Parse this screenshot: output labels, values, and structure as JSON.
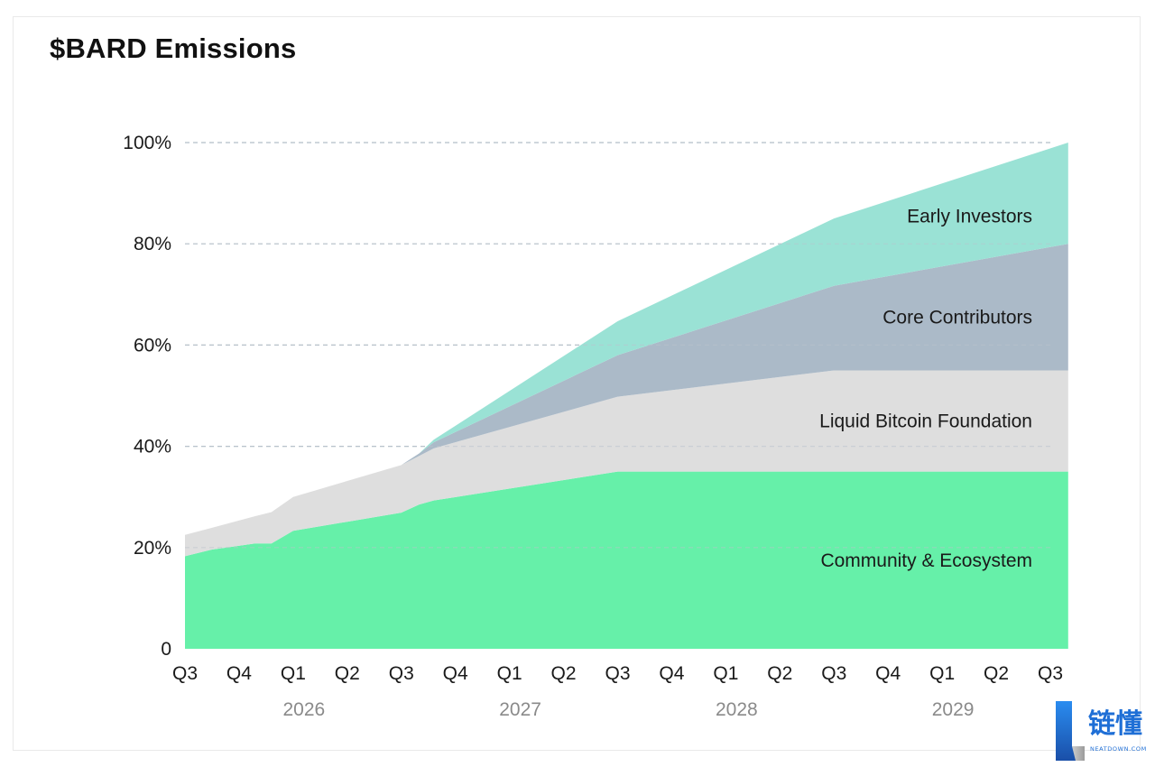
{
  "chart_data": {
    "type": "area",
    "stacked": true,
    "title": "$BARD Emissions",
    "xlabel": "",
    "ylabel": "",
    "ylim": [
      0,
      100
    ],
    "y_ticks": [
      {
        "value": 0,
        "label": "0"
      },
      {
        "value": 20,
        "label": "20%"
      },
      {
        "value": 40,
        "label": "40%"
      },
      {
        "value": 60,
        "label": "60%"
      },
      {
        "value": 80,
        "label": "80%"
      },
      {
        "value": 100,
        "label": "100%"
      }
    ],
    "x_ticks": [
      "Q3",
      "Q4",
      "Q1",
      "Q2",
      "Q3",
      "Q4",
      "Q1",
      "Q2",
      "Q3",
      "Q4",
      "Q1",
      "Q2",
      "Q3",
      "Q4",
      "Q1",
      "Q2",
      "Q3"
    ],
    "years": [
      {
        "label": "2026",
        "quarter_index": 2.2
      },
      {
        "label": "2027",
        "quarter_index": 6.2
      },
      {
        "label": "2028",
        "quarter_index": 10.2
      },
      {
        "label": "2029",
        "quarter_index": 14.2
      }
    ],
    "grid": "horizontal dashed",
    "legend": "inline labels",
    "x": [
      0,
      0.5,
      1.3,
      1.6,
      2,
      4,
      4.33,
      4.6,
      8,
      12,
      16.33
    ],
    "series": [
      {
        "name": "Community & Ecosystem",
        "color": "#66f0a9",
        "values": [
          18.3,
          19.6,
          20.8,
          20.8,
          23.3,
          26.9,
          28.5,
          29.3,
          35.0,
          35.0,
          35.0
        ]
      },
      {
        "name": "Liquid Bitcoin Foundation",
        "color": "#dedede",
        "values": [
          4.2,
          4.3,
          5.4,
          6.2,
          6.7,
          9.4,
          9.6,
          10.3,
          14.8,
          20.0,
          20.0
        ]
      },
      {
        "name": "Core Contributors",
        "color": "#abbac8",
        "values": [
          0,
          0,
          0,
          0,
          0,
          0,
          0.5,
          1.2,
          8.2,
          16.7,
          25.0
        ]
      },
      {
        "name": "Early Investors",
        "color": "#9ae2d5",
        "values": [
          0,
          0,
          0,
          0,
          0,
          0,
          0,
          0.5,
          6.7,
          13.3,
          20.0
        ]
      }
    ],
    "label_values": [
      {
        "series": "Early Investors",
        "y": 85.5
      },
      {
        "series": "Core Contributors",
        "y": 65.5
      },
      {
        "series": "Liquid Bitcoin Foundation",
        "y": 45.0
      },
      {
        "series": "Community & Ecosystem",
        "y": 17.5
      }
    ]
  },
  "brand": {
    "name": "链懂",
    "site": "NEATDOWN.COM"
  }
}
